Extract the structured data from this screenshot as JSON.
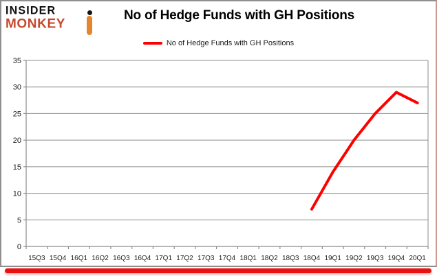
{
  "logo": {
    "line1": "INSIDER",
    "line2": "MONKEY"
  },
  "header": {
    "title": "No of Hedge Funds with GH Positions"
  },
  "legend": {
    "label": "No of Hedge Funds with GH Positions",
    "color": "#ff0000"
  },
  "chart_data": {
    "type": "line",
    "title": "No of Hedge Funds with GH Positions",
    "categories": [
      "15Q3",
      "15Q4",
      "16Q1",
      "16Q2",
      "16Q3",
      "16Q4",
      "17Q1",
      "17Q2",
      "17Q3",
      "17Q4",
      "18Q1",
      "18Q2",
      "18Q3",
      "18Q4",
      "19Q1",
      "19Q2",
      "19Q3",
      "19Q4",
      "20Q1"
    ],
    "series": [
      {
        "name": "No of Hedge Funds with GH Positions",
        "color": "#ff0000",
        "values": [
          null,
          null,
          null,
          null,
          null,
          null,
          null,
          null,
          null,
          null,
          null,
          null,
          null,
          7,
          14,
          20,
          25,
          29,
          27
        ]
      }
    ],
    "xlabel": "",
    "ylabel": "",
    "ylim": [
      0,
      35
    ],
    "yticks": [
      0,
      5,
      10,
      15,
      20,
      25,
      30,
      35
    ],
    "grid": true,
    "legend_position": "top"
  },
  "colors": {
    "line": "#ff0000",
    "grid": "#8c8c8c",
    "axis": "#8c8c8c",
    "accent_bar": "#e91212",
    "logo_red": "#c64a2e",
    "monkey_orange": "#e5862d"
  }
}
